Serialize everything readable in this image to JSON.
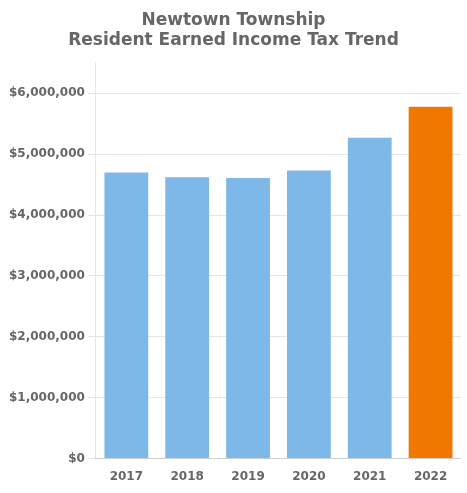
{
  "chart_data": {
    "type": "bar",
    "title": "Newtown Township\nResident Earned Income Tax Trend",
    "categories": [
      "2017",
      "2018",
      "2019",
      "2020",
      "2021",
      "2022"
    ],
    "values": [
      4700000,
      4620000,
      4610000,
      4730000,
      5270000,
      5780000
    ],
    "colors": [
      "#7eb8e8",
      "#7eb8e8",
      "#7eb8e8",
      "#7eb8e8",
      "#7eb8e8",
      "#f07800"
    ],
    "ylim": [
      0,
      6500000
    ],
    "yticks": [
      {
        "value": 0,
        "label": "$0"
      },
      {
        "value": 1000000,
        "label": "$1,000,000"
      },
      {
        "value": 2000000,
        "label": "$2,000,000"
      },
      {
        "value": 3000000,
        "label": "$3,000,000"
      },
      {
        "value": 4000000,
        "label": "$4,000,000"
      },
      {
        "value": 5000000,
        "label": "$5,000,000"
      },
      {
        "value": 6000000,
        "label": "$6,000,000"
      }
    ],
    "grid": true
  }
}
